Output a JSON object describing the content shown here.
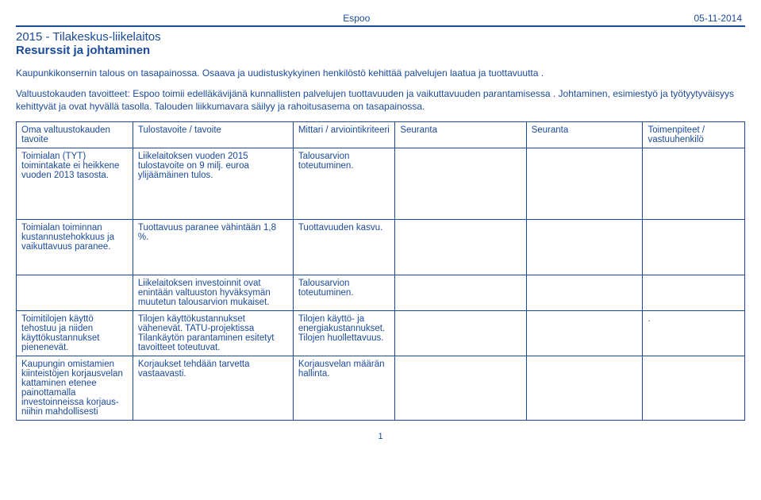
{
  "header": {
    "city": "Espoo",
    "date": "05-11-2014"
  },
  "title": {
    "line1": "2015 - Tilakeskus-liikelaitos",
    "line2": "Resurssit ja johtaminen"
  },
  "intro": {
    "p1": "Kaupunkikonsernin talous on tasapainossa. Osaava ja uudistuskykyinen henkilöstö kehittää palvelujen laatua ja tuottavuutta .",
    "p2": "Valtuustokauden tavoitteet: Espoo toimii edelläkävijänä kunnallisten palvelujen tuottavuuden ja vaikuttavuuden  parantamisessa . Johtaminen,  esimiestyö  ja työtyytyväisyys kehittyvät ja ovat hyvällä tasolla. Talouden liikkumavara säilyy ja  rahoitusasema  on tasapainossa."
  },
  "table": {
    "headers": {
      "h1": "Oma valtuustokauden tavoite",
      "h2": "Tulostavoite / tavoite",
      "h3": "Mittari / arviointikriteeri",
      "h4": "Seuranta",
      "h5": "Seuranta",
      "h6": "Toimenpiteet / vastuuhenkilö"
    },
    "rows": [
      {
        "c1": "Toimialan (TYT) toimintakate ei heikkene vuoden 2013 tasosta.",
        "c2": "Liikelaitoksen vuoden 2015 tulostavoite on 9 milj. euroa ylijäämäinen tulos.",
        "c3": "Talousarvion toteutuminen.",
        "c4": "",
        "c5": "",
        "c6": ""
      },
      {
        "c1": "Toimialan toiminnan kustannustehokkuus ja vaikuttavuus paranee.",
        "c2": "Tuottavuus paranee vähintään 1,8 %.",
        "c3": "Tuottavuuden kasvu.",
        "c4": "",
        "c5": "",
        "c6": ""
      },
      {
        "c1": "",
        "c2": "Liikelaitoksen investoinnit ovat enintään valtuuston hyväksymän muutetun talousarvion mukaiset.",
        "c3": "Talousarvion toteutuminen.",
        "c4": "",
        "c5": "",
        "c6": ""
      },
      {
        "c1": "Toimitilojen käyttö tehostuu ja niiden käyttökustannukset pienenevät.",
        "c2": "Tilojen käyttökustannukset vähenevät. TATU-projektissa Tilankäytön parantaminen esitetyt tavoitteet toteutuvat.",
        "c3": "Tilojen käyttö- ja energiakustannukset. Tilojen huollettavuus.",
        "c4": "",
        "c5": "",
        "c6": "."
      },
      {
        "c1": "Kaupungin omistamien kiinteistöjen korjausvelan kattaminen etenee painottamalla investoinneissa korjaus- niihin mahdollisesti",
        "c2": "Korjaukset tehdään tarvetta vastaavasti.",
        "c3": "Korjausvelan määrän hallinta.",
        "c4": "",
        "c5": "",
        "c6": ""
      }
    ]
  },
  "footer": {
    "page": "1"
  },
  "colors": {
    "brand": "#1a4a9a"
  }
}
